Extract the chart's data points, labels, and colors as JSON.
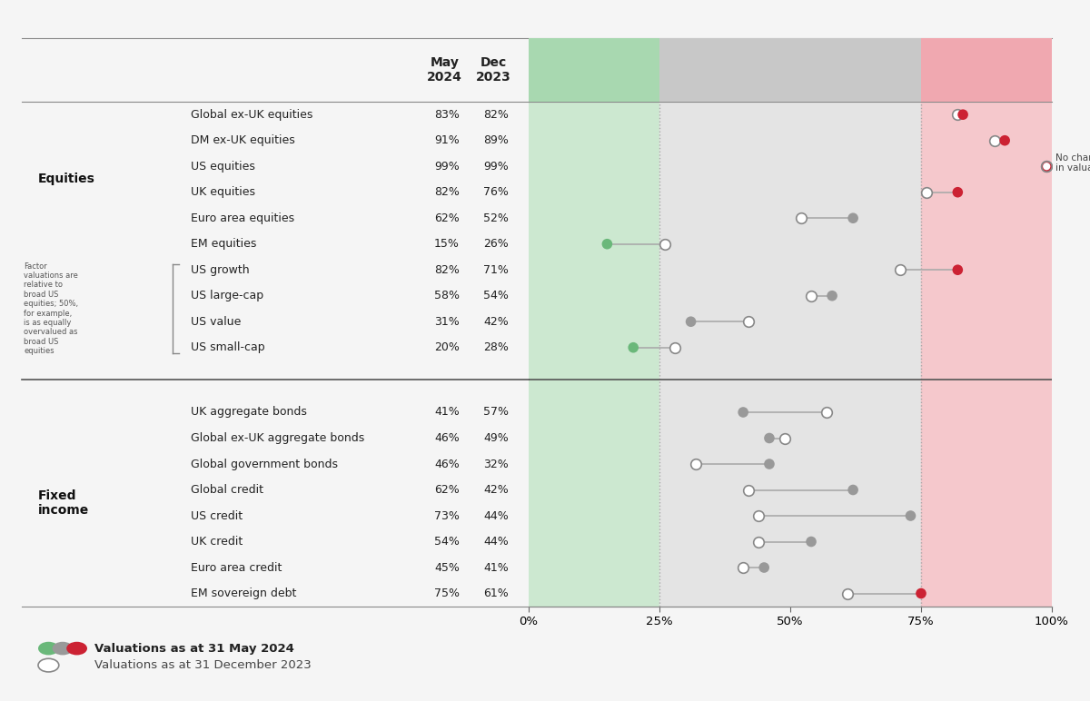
{
  "rows": [
    {
      "label": "Global ex-UK equities",
      "may2024": 83,
      "dec2023": 82,
      "section": "equities"
    },
    {
      "label": "DM ex-UK equities",
      "may2024": 91,
      "dec2023": 89,
      "section": "equities"
    },
    {
      "label": "US equities",
      "may2024": 99,
      "dec2023": 99,
      "section": "equities"
    },
    {
      "label": "UK equities",
      "may2024": 82,
      "dec2023": 76,
      "section": "equities"
    },
    {
      "label": "Euro area equities",
      "may2024": 62,
      "dec2023": 52,
      "section": "equities"
    },
    {
      "label": "EM equities",
      "may2024": 15,
      "dec2023": 26,
      "section": "equities"
    },
    {
      "label": "US growth",
      "may2024": 82,
      "dec2023": 71,
      "section": "equities_factor"
    },
    {
      "label": "US large-cap",
      "may2024": 58,
      "dec2023": 54,
      "section": "equities_factor"
    },
    {
      "label": "US value",
      "may2024": 31,
      "dec2023": 42,
      "section": "equities_factor"
    },
    {
      "label": "US small-cap",
      "may2024": 20,
      "dec2023": 28,
      "section": "equities_factor"
    },
    {
      "label": "UK aggregate bonds",
      "may2024": 41,
      "dec2023": 57,
      "section": "fixed_income"
    },
    {
      "label": "Global ex-UK aggregate bonds",
      "may2024": 46,
      "dec2023": 49,
      "section": "fixed_income"
    },
    {
      "label": "Global government bonds",
      "may2024": 46,
      "dec2023": 32,
      "section": "fixed_income"
    },
    {
      "label": "Global credit",
      "may2024": 62,
      "dec2023": 42,
      "section": "fixed_income"
    },
    {
      "label": "US credit",
      "may2024": 73,
      "dec2023": 44,
      "section": "fixed_income"
    },
    {
      "label": "UK credit",
      "may2024": 54,
      "dec2023": 44,
      "section": "fixed_income"
    },
    {
      "label": "Euro area credit",
      "may2024": 45,
      "dec2023": 41,
      "section": "fixed_income"
    },
    {
      "label": "EM sovereign debt",
      "may2024": 75,
      "dec2023": 61,
      "section": "fixed_income"
    }
  ],
  "factor_note": "Factor\nvaluations are\nrelative to\nbroad US\nequities; 50%,\nfor example,\nis as equally\novervalued as\nbroad US\nequities",
  "header_may": "May\n2024",
  "header_dec": "Dec\n2023",
  "green": "#6ab87a",
  "gray": "#999999",
  "red": "#cc2233",
  "line_color": "#aaaaaa",
  "bg_overall": "#f5f5f5",
  "band_colors": [
    "#cce8d0",
    "#e4e4e4",
    "#f5c8cc"
  ],
  "header_colors": [
    "#a8d8b0",
    "#c8c8c8",
    "#f0a8b0"
  ],
  "undervalued_thresh": 25,
  "stretched_thresh": 75
}
